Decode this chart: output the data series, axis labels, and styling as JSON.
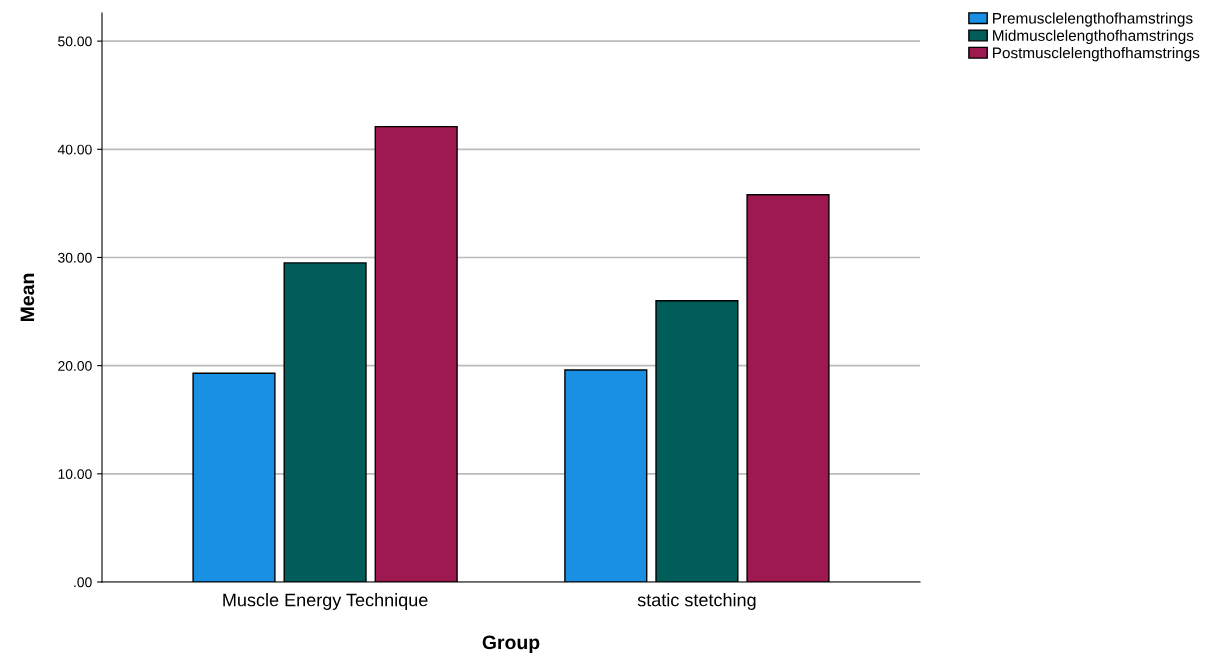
{
  "chart_data": {
    "type": "bar",
    "xlabel": "Group",
    "ylabel": "Mean",
    "categories": [
      "Muscle Energy Technique",
      "static stetching"
    ],
    "series": [
      {
        "name": "Premusclelengthofhamstrings",
        "color": "#1a90e5",
        "values": [
          19.3,
          19.6
        ]
      },
      {
        "name": "Midmusclelengthofhamstrings",
        "color": "#005d5a",
        "values": [
          29.5,
          26.0
        ]
      },
      {
        "name": "Postmusclelengthofhamstrings",
        "color": "#9e1950",
        "values": [
          42.1,
          35.8
        ]
      }
    ],
    "ylim": [
      0,
      52.6
    ],
    "yticks": [
      {
        "value": 0,
        "label": ".00"
      },
      {
        "value": 10,
        "label": "10.00"
      },
      {
        "value": 20,
        "label": "20.00"
      },
      {
        "value": 30,
        "label": "30.00"
      },
      {
        "value": 40,
        "label": "40.00"
      },
      {
        "value": 50,
        "label": "50.00"
      }
    ],
    "grid": "y",
    "legend": "top right"
  }
}
